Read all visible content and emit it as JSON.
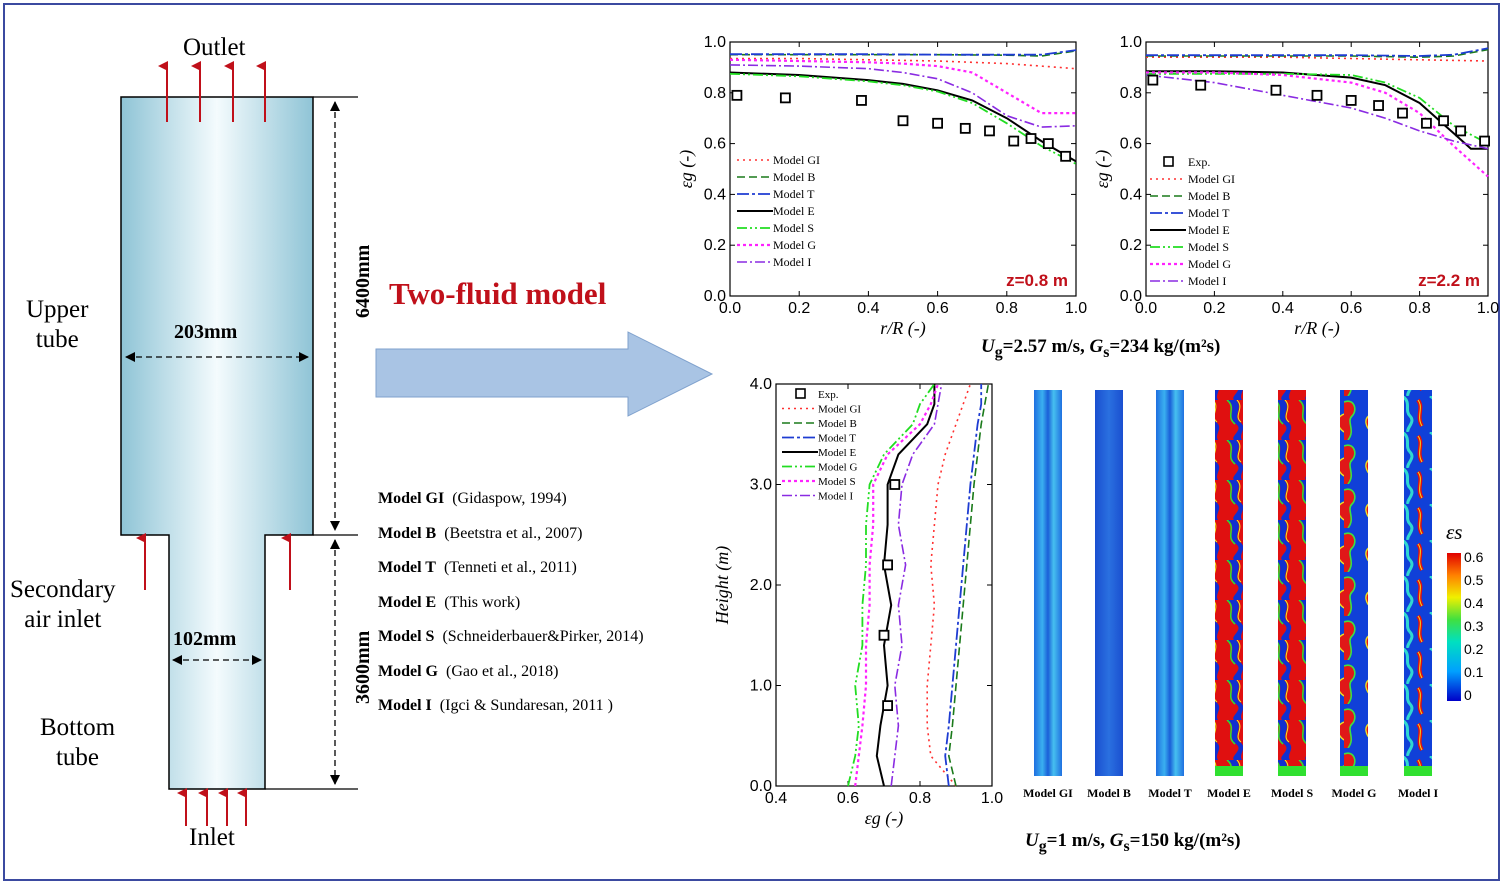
{
  "schematic": {
    "outlet": "Outlet",
    "inlet": "Inlet",
    "upper_tube": [
      "Upper",
      "tube"
    ],
    "bottom_tube": [
      "Bottom",
      "tube"
    ],
    "secondary_air": [
      "Secondary",
      "air inlet"
    ],
    "upper_width": "203mm",
    "lower_width": "102mm",
    "upper_height": "6400mm",
    "lower_height": "3600mm"
  },
  "arrow_label": "Two-fluid model",
  "models_list": [
    {
      "name": "Model GI",
      "ref": "(Gidaspow, 1994)"
    },
    {
      "name": "Model B",
      "ref": "(Beetstra et al., 2007)"
    },
    {
      "name": "Model T",
      "ref": "(Tenneti et al., 2011)"
    },
    {
      "name": "Model E",
      "ref": "(This work)"
    },
    {
      "name": "Model S",
      "ref": "(Schneiderbauer&Pirker, 2014)"
    },
    {
      "name": "Model G",
      "ref": "(Gao et al., 2018)"
    },
    {
      "name": "Model I",
      "ref": "(Igci & Sundaresan, 2011 )"
    }
  ],
  "colors": {
    "GI": "#ff3030",
    "B": "#1a7a1a",
    "T": "#1e3cd2",
    "E": "#000000",
    "S": "#22dd22",
    "G": "#ff22ff",
    "I": "#8a2be2",
    "title_red": "#c0101a",
    "arrow": "#a9c4e4"
  },
  "caption_top": {
    "U": "U",
    "Usub": "g",
    "Uval": "=2.57 m/s, ",
    "G": "G",
    "Gsub": "s",
    "Gval": "=234 kg/(m²s)"
  },
  "caption_bottom": {
    "U": "U",
    "Usub": "g",
    "Uval": "=1 m/s, ",
    "G": "G",
    "Gsub": "s",
    "Gval": "=150 kg/(m²s)"
  },
  "contour": {
    "labels": [
      "Model GI",
      "Model B",
      "Model T",
      "Model E",
      "Model S",
      "Model G",
      "Model I"
    ],
    "colorbar_title": "εs",
    "colorbar_ticks": [
      "0.6",
      "0.5",
      "0.4",
      "0.3",
      "0.2",
      "0.1",
      "0"
    ]
  },
  "chart_data": [
    {
      "type": "line",
      "xlabel": "r/R (-)",
      "ylabel": "εg (-)",
      "xlim": [
        0,
        1.0
      ],
      "ylim": [
        0,
        1.0
      ],
      "xticks": [
        "0.0",
        "0.2",
        "0.4",
        "0.6",
        "0.8",
        "1.0"
      ],
      "yticks": [
        "0.0",
        "0.2",
        "0.4",
        "0.6",
        "0.8",
        "1.0"
      ],
      "annotation": "z=0.8 m",
      "legend_position": "left-middle",
      "series": [
        {
          "name": "Model GI",
          "key": "GI",
          "x": [
            0,
            0.2,
            0.4,
            0.6,
            0.8,
            0.9,
            1.0
          ],
          "y": [
            0.935,
            0.935,
            0.93,
            0.925,
            0.915,
            0.905,
            0.895
          ]
        },
        {
          "name": "Model B",
          "key": "B",
          "x": [
            0,
            0.2,
            0.4,
            0.6,
            0.8,
            0.9,
            1.0
          ],
          "y": [
            0.95,
            0.95,
            0.95,
            0.95,
            0.948,
            0.945,
            0.965
          ]
        },
        {
          "name": "Model T",
          "key": "T",
          "x": [
            0,
            0.2,
            0.4,
            0.6,
            0.8,
            0.9,
            1.0
          ],
          "y": [
            0.952,
            0.952,
            0.952,
            0.95,
            0.95,
            0.95,
            0.968
          ]
        },
        {
          "name": "Model E",
          "key": "E",
          "x": [
            0,
            0.2,
            0.4,
            0.5,
            0.6,
            0.7,
            0.8,
            0.9,
            1.0
          ],
          "y": [
            0.88,
            0.87,
            0.85,
            0.835,
            0.81,
            0.77,
            0.7,
            0.61,
            0.53
          ]
        },
        {
          "name": "Model S",
          "key": "S",
          "x": [
            0,
            0.2,
            0.4,
            0.5,
            0.6,
            0.7,
            0.8,
            0.9,
            1.0
          ],
          "y": [
            0.875,
            0.865,
            0.845,
            0.83,
            0.805,
            0.76,
            0.68,
            0.59,
            0.52
          ]
        },
        {
          "name": "Model G",
          "key": "G",
          "x": [
            0,
            0.2,
            0.4,
            0.5,
            0.6,
            0.7,
            0.8,
            0.9,
            1.0
          ],
          "y": [
            0.93,
            0.925,
            0.92,
            0.915,
            0.905,
            0.88,
            0.8,
            0.72,
            0.72
          ]
        },
        {
          "name": "Model I",
          "key": "I",
          "x": [
            0,
            0.2,
            0.4,
            0.5,
            0.6,
            0.7,
            0.8,
            0.9,
            1.0
          ],
          "y": [
            0.91,
            0.905,
            0.895,
            0.88,
            0.855,
            0.8,
            0.71,
            0.665,
            0.67
          ]
        }
      ],
      "exp": {
        "x": [
          0.02,
          0.16,
          0.38,
          0.5,
          0.6,
          0.68,
          0.75,
          0.82,
          0.87,
          0.92,
          0.97
        ],
        "y": [
          0.79,
          0.78,
          0.77,
          0.69,
          0.68,
          0.66,
          0.65,
          0.61,
          0.62,
          0.6,
          0.55
        ]
      }
    },
    {
      "type": "line",
      "xlabel": "r/R (-)",
      "ylabel": "εg (-)",
      "xlim": [
        0,
        1.0
      ],
      "ylim": [
        0,
        1.0
      ],
      "xticks": [
        "0.0",
        "0.2",
        "0.4",
        "0.6",
        "0.8",
        "1.0"
      ],
      "yticks": [
        "0.0",
        "0.2",
        "0.4",
        "0.6",
        "0.8",
        "1.0"
      ],
      "annotation": "z=2.2 m",
      "legend_position": "left-middle",
      "exp_label": "Exp.",
      "series": [
        {
          "name": "Model GI",
          "key": "GI",
          "x": [
            0,
            0.2,
            0.4,
            0.6,
            0.8,
            1.0
          ],
          "y": [
            0.94,
            0.94,
            0.94,
            0.935,
            0.93,
            0.925
          ]
        },
        {
          "name": "Model B",
          "key": "B",
          "x": [
            0,
            0.2,
            0.4,
            0.6,
            0.8,
            0.9,
            1.0
          ],
          "y": [
            0.945,
            0.945,
            0.945,
            0.945,
            0.94,
            0.945,
            0.97
          ]
        },
        {
          "name": "Model T",
          "key": "T",
          "x": [
            0,
            0.2,
            0.4,
            0.6,
            0.8,
            0.9,
            1.0
          ],
          "y": [
            0.948,
            0.948,
            0.948,
            0.948,
            0.945,
            0.95,
            0.975
          ]
        },
        {
          "name": "Model E",
          "key": "E",
          "x": [
            0,
            0.2,
            0.4,
            0.6,
            0.7,
            0.8,
            0.9,
            0.95,
            1.0
          ],
          "y": [
            0.885,
            0.885,
            0.88,
            0.86,
            0.83,
            0.76,
            0.64,
            0.58,
            0.58
          ]
        },
        {
          "name": "Model S",
          "key": "S",
          "x": [
            0,
            0.2,
            0.4,
            0.6,
            0.7,
            0.8,
            0.9,
            1.0
          ],
          "y": [
            0.875,
            0.875,
            0.875,
            0.87,
            0.84,
            0.78,
            0.67,
            0.6
          ]
        },
        {
          "name": "Model G",
          "key": "G",
          "x": [
            0,
            0.2,
            0.4,
            0.6,
            0.7,
            0.8,
            0.9,
            1.0
          ],
          "y": [
            0.88,
            0.88,
            0.87,
            0.84,
            0.8,
            0.72,
            0.59,
            0.47
          ]
        },
        {
          "name": "Model I",
          "key": "I",
          "x": [
            0,
            0.2,
            0.4,
            0.6,
            0.7,
            0.8,
            0.9,
            1.0
          ],
          "y": [
            0.87,
            0.84,
            0.79,
            0.74,
            0.7,
            0.65,
            0.61,
            0.58
          ]
        }
      ],
      "exp": {
        "x": [
          0.02,
          0.16,
          0.38,
          0.5,
          0.6,
          0.68,
          0.75,
          0.82,
          0.87,
          0.92,
          0.99
        ],
        "y": [
          0.85,
          0.83,
          0.81,
          0.79,
          0.77,
          0.75,
          0.72,
          0.68,
          0.69,
          0.65,
          0.61
        ]
      }
    },
    {
      "type": "line",
      "xlabel": "εg (-)",
      "ylabel": "Height (m)",
      "xlim": [
        0.4,
        1.0
      ],
      "ylim": [
        0,
        4.0
      ],
      "xticks": [
        "0.4",
        "0.6",
        "0.8",
        "1.0"
      ],
      "yticks": [
        "0.0",
        "1.0",
        "2.0",
        "3.0",
        "4.0"
      ],
      "legend_position": "top-left",
      "exp_label": "Exp.",
      "legend_order": [
        "GI",
        "B",
        "T",
        "E",
        "S",
        "G",
        "I"
      ],
      "legend_names": [
        "Model GI",
        "Model B",
        "Model T",
        "Model E",
        "Model G",
        "Model S",
        "Model I"
      ],
      "series": [
        {
          "name": "Model GI",
          "key": "GI",
          "x": [
            0.9,
            0.83,
            0.82,
            0.82,
            0.83,
            0.84,
            0.83,
            0.84,
            0.85,
            0.87,
            0.9,
            0.92,
            0.94
          ],
          "y": [
            0,
            0.3,
            0.6,
            1.0,
            1.4,
            1.8,
            2.2,
            2.6,
            3.0,
            3.3,
            3.6,
            3.8,
            4.0
          ]
        },
        {
          "name": "Model B",
          "key": "B",
          "x": [
            0.9,
            0.88,
            0.89,
            0.9,
            0.91,
            0.92,
            0.93,
            0.94,
            0.95,
            0.96,
            0.97,
            0.98,
            0.99
          ],
          "y": [
            0,
            0.3,
            0.6,
            1.0,
            1.4,
            1.8,
            2.2,
            2.6,
            3.0,
            3.3,
            3.6,
            3.8,
            4.0
          ]
        },
        {
          "name": "Model T",
          "key": "T",
          "x": [
            0.88,
            0.87,
            0.88,
            0.89,
            0.9,
            0.91,
            0.92,
            0.93,
            0.94,
            0.95,
            0.96,
            0.97,
            0.97
          ],
          "y": [
            0,
            0.3,
            0.6,
            1.0,
            1.4,
            1.8,
            2.2,
            2.6,
            3.0,
            3.3,
            3.6,
            3.8,
            4.0
          ]
        },
        {
          "name": "Model E",
          "key": "E",
          "x": [
            0.7,
            0.68,
            0.69,
            0.71,
            0.7,
            0.72,
            0.7,
            0.71,
            0.71,
            0.74,
            0.82,
            0.84,
            0.84
          ],
          "y": [
            0,
            0.3,
            0.6,
            1.0,
            1.4,
            1.8,
            2.2,
            2.6,
            3.0,
            3.3,
            3.6,
            3.8,
            4.0
          ]
        },
        {
          "name": "Model S",
          "key": "S",
          "x": [
            0.6,
            0.62,
            0.63,
            0.62,
            0.64,
            0.64,
            0.65,
            0.65,
            0.66,
            0.7,
            0.78,
            0.8,
            0.84
          ],
          "y": [
            0,
            0.3,
            0.6,
            1.0,
            1.4,
            1.8,
            2.2,
            2.6,
            3.0,
            3.3,
            3.6,
            3.8,
            4.0
          ]
        },
        {
          "name": "Model G",
          "key": "G",
          "x": [
            0.62,
            0.63,
            0.64,
            0.65,
            0.65,
            0.66,
            0.66,
            0.67,
            0.67,
            0.71,
            0.8,
            0.83,
            0.85
          ],
          "y": [
            0,
            0.3,
            0.6,
            1.0,
            1.4,
            1.8,
            2.2,
            2.6,
            3.0,
            3.3,
            3.6,
            3.8,
            4.0
          ]
        },
        {
          "name": "Model I",
          "key": "I",
          "x": [
            0.72,
            0.73,
            0.74,
            0.73,
            0.75,
            0.74,
            0.76,
            0.74,
            0.75,
            0.78,
            0.84,
            0.85,
            0.86
          ],
          "y": [
            0,
            0.3,
            0.6,
            1.0,
            1.4,
            1.8,
            2.2,
            2.6,
            3.0,
            3.3,
            3.6,
            3.8,
            4.0
          ]
        }
      ],
      "exp": {
        "x": [
          0.71,
          0.7,
          0.71,
          0.73
        ],
        "y": [
          0.8,
          1.5,
          2.2,
          3.0
        ]
      }
    }
  ]
}
